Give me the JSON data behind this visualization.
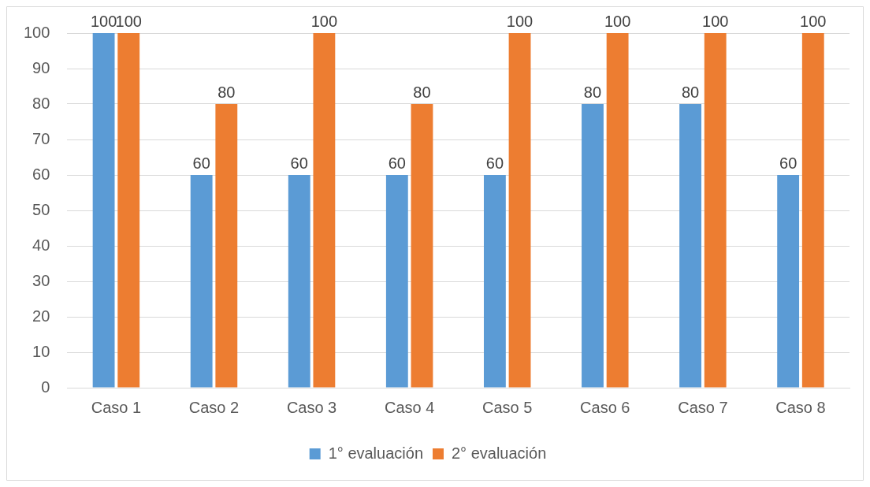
{
  "chart_data": {
    "type": "bar",
    "categories": [
      "Caso 1",
      "Caso 2",
      "Caso 3",
      "Caso 4",
      "Caso 5",
      "Caso 6",
      "Caso 7",
      "Caso 8"
    ],
    "series": [
      {
        "name": "1° evaluación",
        "color": "#5b9bd5",
        "values": [
          100,
          60,
          60,
          60,
          60,
          80,
          80,
          60
        ]
      },
      {
        "name": "2° evaluación",
        "color": "#ed7d31",
        "values": [
          100,
          80,
          100,
          80,
          100,
          100,
          100,
          100
        ]
      }
    ],
    "ylim": [
      0,
      100
    ],
    "yticks": [
      0,
      10,
      20,
      30,
      40,
      50,
      60,
      70,
      80,
      90,
      100
    ],
    "grid": "y",
    "legend": "bottom",
    "data_labels": true
  }
}
